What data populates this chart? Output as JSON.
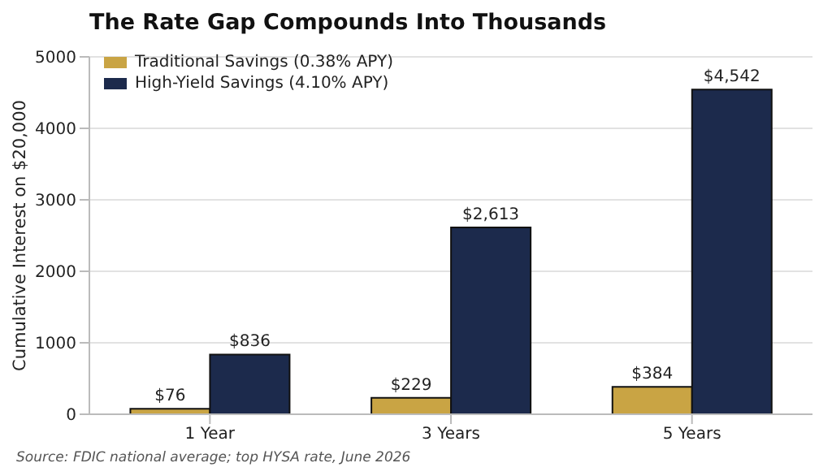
{
  "chart_data": {
    "type": "bar",
    "title": "The Rate Gap Compounds Into Thousands",
    "ylabel": "Cumulative Interest on $20,000",
    "categories": [
      "1 Year",
      "3 Years",
      "5 Years"
    ],
    "series": [
      {
        "name": "Traditional Savings (0.38% APY)",
        "color": "#c9a444",
        "values": [
          76,
          229,
          384
        ],
        "value_labels": [
          "$76",
          "$229",
          "$384"
        ]
      },
      {
        "name": "High-Yield Savings (4.10% APY)",
        "color": "#1c2a4c",
        "values": [
          836,
          2613,
          4542
        ],
        "value_labels": [
          "$836",
          "$2,613",
          "$4,542"
        ]
      }
    ],
    "ylim": [
      0,
      5000
    ],
    "yticks": [
      0,
      1000,
      2000,
      3000,
      4000,
      5000
    ],
    "grid": "y",
    "legend": "top left",
    "annotations": [
      "Source: FDIC national average; top HYSA rate, June 2026"
    ]
  }
}
